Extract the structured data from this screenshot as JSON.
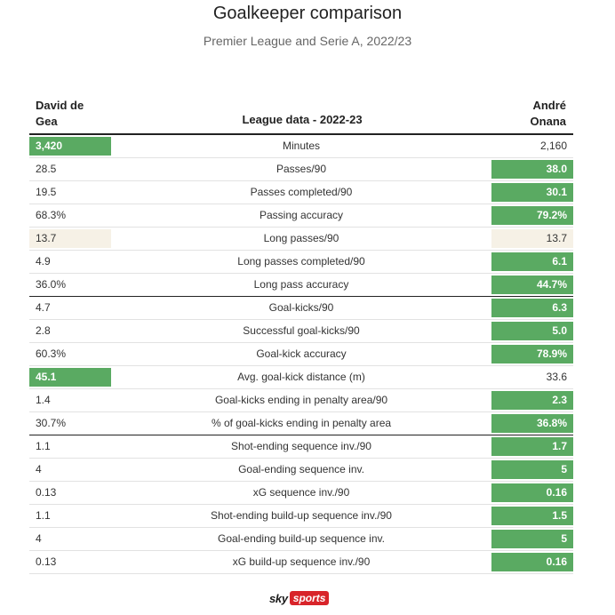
{
  "title": "Goalkeeper comparison",
  "subtitle": "Premier League and Serie A, 2022/23",
  "header": {
    "left_name_1": "David de",
    "left_name_2": "Gea",
    "center": "League data - 2022-23",
    "right_name_1": "André",
    "right_name_2": "Onana"
  },
  "logo": {
    "sky": "sky",
    "sports": "sports"
  },
  "colors": {
    "winner": "#5aaa62",
    "tie": "#f6f1e6",
    "rule": "#222222"
  },
  "chart_data": {
    "type": "table",
    "columns": [
      "David de Gea",
      "League data - 2022-23",
      "André Onana"
    ],
    "rows": [
      {
        "metric": "Minutes",
        "de_gea": "3,420",
        "onana": "2,160",
        "highlight": "left",
        "divider_after": false
      },
      {
        "metric": "Passes/90",
        "de_gea": "28.5",
        "onana": "38.0",
        "highlight": "right",
        "divider_after": false
      },
      {
        "metric": "Passes completed/90",
        "de_gea": "19.5",
        "onana": "30.1",
        "highlight": "right",
        "divider_after": false
      },
      {
        "metric": "Passing accuracy",
        "de_gea": "68.3%",
        "onana": "79.2%",
        "highlight": "right",
        "divider_after": false
      },
      {
        "metric": "Long passes/90",
        "de_gea": "13.7",
        "onana": "13.7",
        "highlight": "tie",
        "divider_after": false
      },
      {
        "metric": "Long passes completed/90",
        "de_gea": "4.9",
        "onana": "6.1",
        "highlight": "right",
        "divider_after": false
      },
      {
        "metric": "Long pass accuracy",
        "de_gea": "36.0%",
        "onana": "44.7%",
        "highlight": "right",
        "divider_after": true
      },
      {
        "metric": "Goal-kicks/90",
        "de_gea": "4.7",
        "onana": "6.3",
        "highlight": "right",
        "divider_after": false
      },
      {
        "metric": "Successful goal-kicks/90",
        "de_gea": "2.8",
        "onana": "5.0",
        "highlight": "right",
        "divider_after": false
      },
      {
        "metric": "Goal-kick accuracy",
        "de_gea": "60.3%",
        "onana": "78.9%",
        "highlight": "right",
        "divider_after": false
      },
      {
        "metric": "Avg. goal-kick distance (m)",
        "de_gea": "45.1",
        "onana": "33.6",
        "highlight": "left",
        "divider_after": false
      },
      {
        "metric": "Goal-kicks ending in penalty area/90",
        "de_gea": "1.4",
        "onana": "2.3",
        "highlight": "right",
        "divider_after": false
      },
      {
        "metric": "% of goal-kicks ending in penalty area",
        "de_gea": "30.7%",
        "onana": "36.8%",
        "highlight": "right",
        "divider_after": true
      },
      {
        "metric": "Shot-ending sequence inv./90",
        "de_gea": "1.1",
        "onana": "1.7",
        "highlight": "right",
        "divider_after": false
      },
      {
        "metric": "Goal-ending sequence inv.",
        "de_gea": "4",
        "onana": "5",
        "highlight": "right",
        "divider_after": false
      },
      {
        "metric": "xG sequence inv./90",
        "de_gea": "0.13",
        "onana": "0.16",
        "highlight": "right",
        "divider_after": false
      },
      {
        "metric": "Shot-ending build-up sequence inv./90",
        "de_gea": "1.1",
        "onana": "1.5",
        "highlight": "right",
        "divider_after": false
      },
      {
        "metric": "Goal-ending build-up sequence inv.",
        "de_gea": "4",
        "onana": "5",
        "highlight": "right",
        "divider_after": false
      },
      {
        "metric": "xG build-up sequence inv./90",
        "de_gea": "0.13",
        "onana": "0.16",
        "highlight": "right",
        "divider_after": false
      }
    ]
  }
}
